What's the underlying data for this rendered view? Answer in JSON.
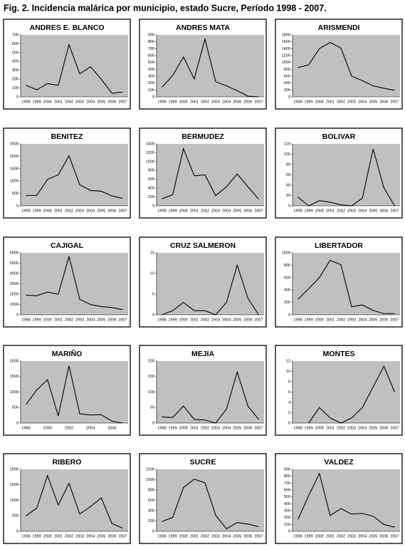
{
  "title": "Fig. 2. Incidencia malárica por municipio, estado Sucre, Período 1998 - 2007.",
  "chart_data": [
    {
      "type": "line",
      "title": "ANDRES E. BLANCO",
      "categories": [
        "1998",
        "1999",
        "2000",
        "2001",
        "2002",
        "2003",
        "2004",
        "2005",
        "2006",
        "2007"
      ],
      "values": [
        130,
        80,
        150,
        130,
        590,
        260,
        340,
        200,
        40,
        55
      ],
      "color": "#000000",
      "ylim": [
        0,
        700
      ],
      "yticks": [
        0,
        100,
        200,
        300,
        400,
        500,
        600,
        700
      ],
      "background": "#c0c0c0"
    },
    {
      "type": "line",
      "title": "ANDRES MATA",
      "categories": [
        "1998",
        "1999",
        "2000",
        "2001",
        "2002",
        "2003",
        "2004",
        "2005",
        "2006",
        "2007"
      ],
      "values": [
        140,
        310,
        580,
        260,
        840,
        220,
        160,
        90,
        10,
        0
      ],
      "color": "#000000",
      "ylim": [
        0,
        900
      ],
      "yticks": [
        0,
        100,
        200,
        300,
        400,
        500,
        600,
        700,
        800,
        900
      ],
      "background": "#c0c0c0"
    },
    {
      "type": "line",
      "title": "ARISMENDI",
      "categories": [
        "1998",
        "1999",
        "2000",
        "2001",
        "2002",
        "2003",
        "2004",
        "2005",
        "2006",
        "2007"
      ],
      "values": [
        850,
        930,
        1400,
        1580,
        1420,
        600,
        470,
        320,
        250,
        190
      ],
      "color": "#000000",
      "ylim": [
        0,
        1800
      ],
      "yticks": [
        0,
        200,
        400,
        600,
        800,
        1000,
        1200,
        1400,
        1600,
        1800
      ],
      "background": "#c0c0c0"
    },
    {
      "type": "line",
      "title": "BENITEZ",
      "categories": [
        "1998",
        "1999",
        "2000",
        "2001",
        "2002",
        "2003",
        "2004",
        "2005",
        "2006",
        "2007"
      ],
      "values": [
        420,
        420,
        1070,
        1250,
        2020,
        850,
        620,
        590,
        400,
        300
      ],
      "color": "#000000",
      "ylim": [
        0,
        2500
      ],
      "yticks": [
        0,
        500,
        1000,
        1500,
        2000,
        2500
      ],
      "background": "#c0c0c0"
    },
    {
      "type": "line",
      "title": "BERMUDEZ",
      "categories": [
        "1998",
        "1999",
        "2000",
        "2001",
        "2002",
        "2003",
        "2004",
        "2005",
        "2006",
        "2007"
      ],
      "values": [
        160,
        250,
        1290,
        680,
        700,
        230,
        430,
        720,
        430,
        150
      ],
      "color": "#000000",
      "ylim": [
        0,
        1400
      ],
      "yticks": [
        0,
        200,
        400,
        600,
        800,
        1000,
        1200,
        1400
      ],
      "background": "#c0c0c0"
    },
    {
      "type": "line",
      "title": "BOLIVAR",
      "categories": [
        "1998",
        "1999",
        "2000",
        "2001",
        "2002",
        "2003",
        "2004",
        "2005",
        "2006",
        "2007"
      ],
      "values": [
        17,
        0,
        10,
        7,
        2,
        0,
        15,
        110,
        35,
        0
      ],
      "color": "#000000",
      "ylim": [
        0,
        120
      ],
      "yticks": [
        0,
        20,
        40,
        60,
        80,
        100,
        120
      ],
      "background": "#c0c0c0"
    },
    {
      "type": "line",
      "title": "CAJIGAL",
      "categories": [
        "1998",
        "1999",
        "2000",
        "2001",
        "2002",
        "2003",
        "2004",
        "2005",
        "2006",
        "2007"
      ],
      "values": [
        1900,
        1850,
        2200,
        2000,
        5650,
        1500,
        1000,
        800,
        700,
        500
      ],
      "color": "#000000",
      "ylim": [
        0,
        6000
      ],
      "yticks": [
        0,
        1000,
        2000,
        3000,
        4000,
        5000,
        6000
      ],
      "background": "#c0c0c0"
    },
    {
      "type": "line",
      "title": "CRUZ SALMERON",
      "categories": [
        "1998",
        "1999",
        "2000",
        "2001",
        "2002",
        "2003",
        "2004",
        "2005",
        "2006",
        "2007"
      ],
      "values": [
        0,
        1,
        3,
        1,
        1,
        0,
        3,
        12,
        4,
        0
      ],
      "color": "#000000",
      "ylim": [
        0,
        15
      ],
      "yticks": [
        0,
        5,
        10,
        15
      ],
      "background": "#c0c0c0"
    },
    {
      "type": "line",
      "title": "LIBERTADOR",
      "categories": [
        "1998",
        "1999",
        "2000",
        "2001",
        "2002",
        "2003",
        "2004",
        "2005",
        "2006",
        "2007"
      ],
      "values": [
        250,
        420,
        600,
        880,
        810,
        130,
        160,
        70,
        20,
        20
      ],
      "color": "#000000",
      "ylim": [
        0,
        1000
      ],
      "yticks": [
        0,
        200,
        400,
        600,
        800,
        1000
      ],
      "background": "#c0c0c0"
    },
    {
      "type": "line",
      "title": "MARIÑO",
      "categories": [
        "1998",
        null,
        "2000",
        null,
        "2002",
        null,
        "2004",
        null,
        "2006",
        null
      ],
      "values": [
        600,
        1070,
        1400,
        230,
        1850,
        300,
        260,
        270,
        60,
        0
      ],
      "color": "#000000",
      "ylim": [
        0,
        2000
      ],
      "yticks": [
        0,
        500,
        1000,
        1500,
        2000
      ],
      "background": "#c0c0c0"
    },
    {
      "type": "line",
      "title": "MEJIA",
      "categories": [
        "1998",
        "1999",
        "2000",
        "2001",
        "2002",
        "2003",
        "2004",
        "2005",
        "2006",
        "2007"
      ],
      "values": [
        20,
        18,
        55,
        12,
        10,
        0,
        45,
        165,
        55,
        12
      ],
      "color": "#000000",
      "ylim": [
        0,
        200
      ],
      "yticks": [
        0,
        50,
        100,
        150,
        200
      ],
      "background": "#c0c0c0"
    },
    {
      "type": "line",
      "title": "MONTES",
      "categories": [
        "1998",
        "1999",
        "2000",
        "2001",
        "2002",
        "2003",
        "2004",
        "2005",
        "2006",
        "2007"
      ],
      "values": [
        null,
        0,
        3,
        1,
        0,
        1,
        3,
        7,
        11,
        6
      ],
      "color": "#000000",
      "ylim": [
        0,
        12
      ],
      "yticks": [
        0,
        2,
        4,
        6,
        8,
        10,
        12
      ],
      "background": "#c0c0c0"
    },
    {
      "type": "line",
      "title": "RIBERO",
      "categories": [
        "1998",
        "1999",
        "2000",
        "2001",
        "2002",
        "2003",
        "2004",
        "2005",
        "2006",
        "2007"
      ],
      "values": [
        500,
        750,
        1800,
        850,
        1550,
        560,
        800,
        1080,
        250,
        100
      ],
      "color": "#000000",
      "ylim": [
        0,
        2000
      ],
      "yticks": [
        0,
        500,
        1000,
        1500,
        2000
      ],
      "background": "#c0c0c0"
    },
    {
      "type": "line",
      "title": "SUCRE",
      "categories": [
        "1998",
        "1999",
        "2000",
        "2001",
        "2002",
        "2003",
        "2004",
        "2005",
        "2006",
        "2007"
      ],
      "values": [
        190,
        270,
        850,
        1010,
        940,
        310,
        50,
        170,
        140,
        90
      ],
      "color": "#000000",
      "ylim": [
        0,
        1200
      ],
      "yticks": [
        0,
        200,
        400,
        600,
        800,
        1000,
        1200
      ],
      "background": "#c0c0c0"
    },
    {
      "type": "line",
      "title": "VALDEZ",
      "categories": [
        "1998",
        "1999",
        "2000",
        "2001",
        "2002",
        "2003",
        "2004",
        "2005",
        "2006",
        "2007"
      ],
      "values": [
        170,
        520,
        840,
        230,
        330,
        250,
        260,
        220,
        100,
        60
      ],
      "color": "#000000",
      "ylim": [
        0,
        900
      ],
      "yticks": [
        0,
        100,
        200,
        300,
        400,
        500,
        600,
        700,
        800,
        900
      ],
      "background": "#c0c0c0"
    }
  ]
}
